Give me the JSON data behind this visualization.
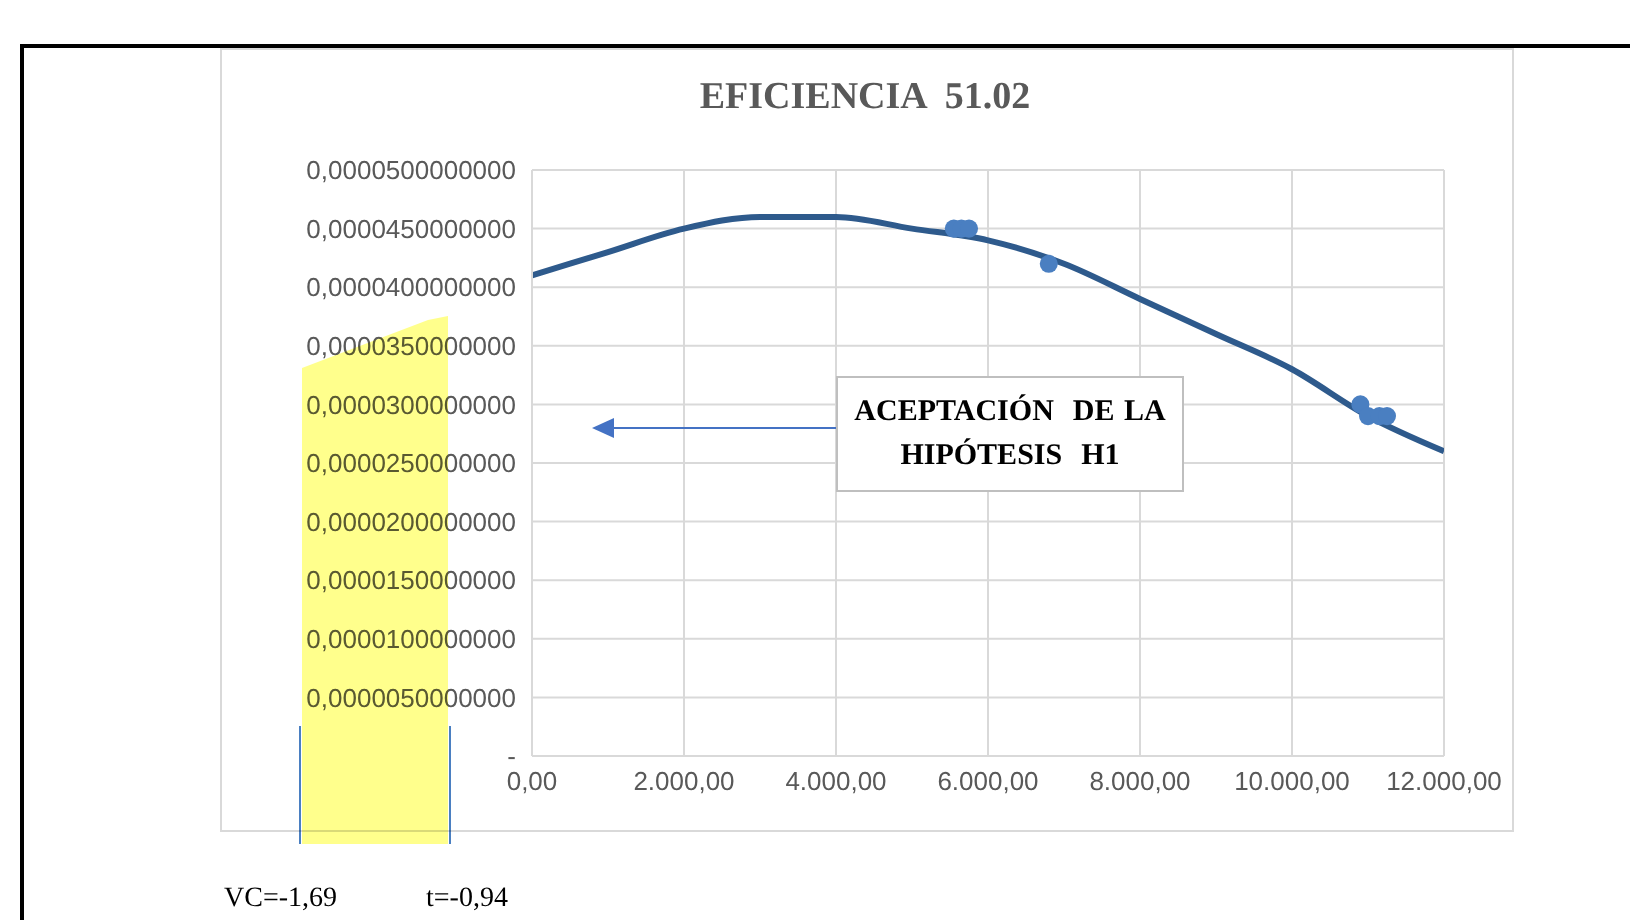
{
  "chart_data": {
    "type": "line",
    "title": "EFICIENCIA  51.02",
    "xlim": [
      0,
      12000
    ],
    "xticks": [
      {
        "value": 0,
        "label": "0,00"
      },
      {
        "value": 2000,
        "label": "2.000,00"
      },
      {
        "value": 4000,
        "label": "4.000,00"
      },
      {
        "value": 6000,
        "label": "6.000,00"
      },
      {
        "value": 8000,
        "label": "8.000,00"
      },
      {
        "value": 10000,
        "label": "10.000,00"
      },
      {
        "value": 12000,
        "label": "12.000,00"
      }
    ],
    "ylim": [
      0,
      5e-05
    ],
    "yticks": [
      {
        "value": 0,
        "label": "-"
      },
      {
        "value": 5e-06,
        "label": "0,0000050000000"
      },
      {
        "value": 1e-05,
        "label": "0,0000100000000"
      },
      {
        "value": 1.5e-05,
        "label": "0,0000150000000"
      },
      {
        "value": 2e-05,
        "label": "0,0000200000000"
      },
      {
        "value": 2.5e-05,
        "label": "0,0000250000000"
      },
      {
        "value": 3e-05,
        "label": "0,0000300000000"
      },
      {
        "value": 3.5e-05,
        "label": "0,0000350000000"
      },
      {
        "value": 4e-05,
        "label": "0,0000400000000"
      },
      {
        "value": 4.5e-05,
        "label": "0,0000450000000"
      },
      {
        "value": 5e-05,
        "label": "0,0000500000000"
      }
    ],
    "grid": true,
    "legend": false,
    "series": [
      {
        "color": "#2e5a8c",
        "marker": "none",
        "x": [
          0,
          1000,
          2000,
          3000,
          3600,
          4000,
          5000,
          6000,
          7000,
          8000,
          9000,
          10000,
          11000,
          12000
        ],
        "values": [
          4.1e-05,
          4.3e-05,
          4.5e-05,
          4.6e-05,
          4.6e-05,
          4.6e-05,
          4.5e-05,
          4.4e-05,
          4.2e-05,
          3.9e-05,
          3.6e-05,
          3.3e-05,
          2.9e-05,
          2.6e-05
        ]
      },
      {
        "type": "scatter",
        "color": "#4a7fc1",
        "marker": "circle",
        "x": [
          5550,
          5650,
          5750,
          6800,
          10900,
          11000,
          11150,
          11250
        ],
        "values": [
          4.5e-05,
          4.5e-05,
          4.5e-05,
          4.2e-05,
          3e-05,
          2.9e-05,
          2.9e-05,
          2.9e-05
        ]
      }
    ],
    "annotations": [
      "ACEPTACIÓN  DE LA HIPÓTESIS  H1",
      "VC=-1,69",
      "t=-0,94"
    ]
  }
}
